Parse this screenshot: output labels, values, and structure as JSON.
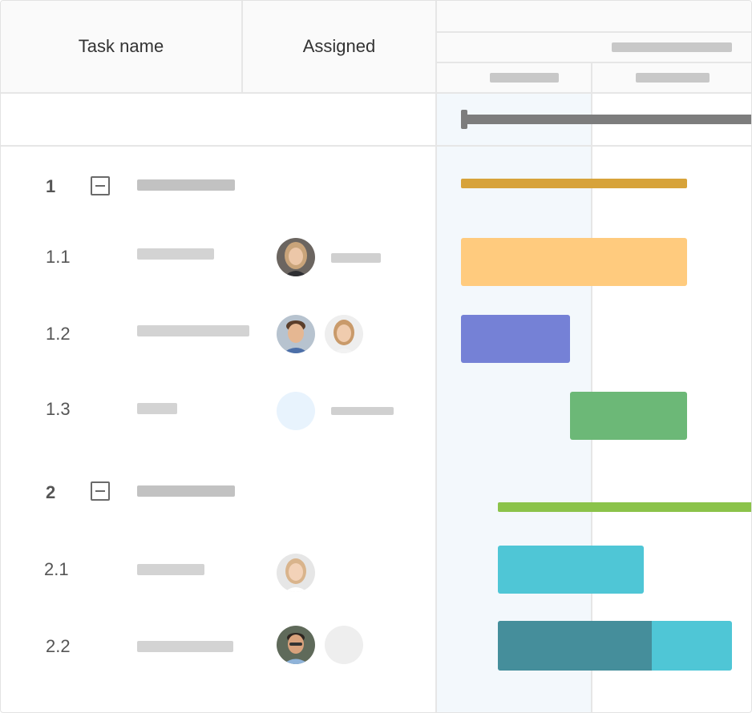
{
  "columns": {
    "task_name": "Task name",
    "assigned": "Assigned"
  },
  "rows": [
    {
      "id": "1",
      "type": "group"
    },
    {
      "id": "1.1",
      "type": "task"
    },
    {
      "id": "1.2",
      "type": "task"
    },
    {
      "id": "1.3",
      "type": "task"
    },
    {
      "id": "2",
      "type": "group"
    },
    {
      "id": "2.1",
      "type": "task"
    },
    {
      "id": "2.2",
      "type": "task"
    }
  ],
  "colors": {
    "project_bar": "#7d7d7d",
    "group_1_bar": "#d7a33a",
    "task_1_1": "#ffcb7e",
    "task_1_2": "#7581d6",
    "task_1_3": "#6cb877",
    "group_2_bar": "#8bc34a",
    "task_2_1": "#4fc6d6",
    "task_2_2_done": "#458e9b",
    "task_2_2_rest": "#4fc6d6",
    "today_column": "#f3f8fc"
  }
}
